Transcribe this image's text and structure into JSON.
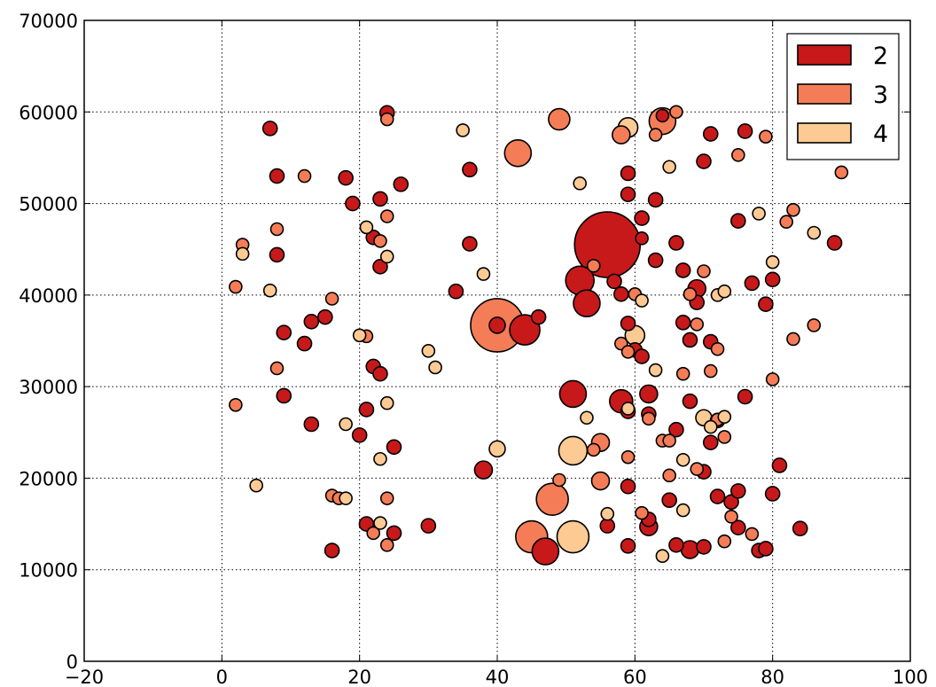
{
  "chart_data": {
    "type": "scatter",
    "title": "",
    "xlabel": "",
    "ylabel": "",
    "xlim": [
      -20,
      100
    ],
    "ylim": [
      0,
      70000
    ],
    "x_ticks": [
      -20,
      0,
      20,
      40,
      60,
      80,
      100
    ],
    "y_ticks": [
      0,
      10000,
      20000,
      30000,
      40000,
      50000,
      60000,
      70000
    ],
    "x_tick_labels": [
      "−20",
      "0",
      "20",
      "40",
      "60",
      "80",
      "100"
    ],
    "y_tick_labels": [
      "0",
      "10000",
      "20000",
      "30000",
      "40000",
      "50000",
      "60000",
      "70000"
    ],
    "grid": true,
    "legend_position": "top-right",
    "encoding": "marker size encodes a third quantity; color encodes series",
    "series": [
      {
        "name": "2",
        "color": "#c7191a",
        "points": [
          [
            56,
            45500,
            37
          ],
          [
            40,
            36700,
            9
          ],
          [
            44,
            36200,
            17
          ],
          [
            52,
            41600,
            16
          ],
          [
            53,
            39100,
            15
          ],
          [
            51,
            29200,
            15
          ],
          [
            58,
            28400,
            13
          ],
          [
            47,
            12000,
            15
          ],
          [
            62,
            29200,
            10
          ],
          [
            62,
            14700,
            10
          ],
          [
            69,
            40700,
            10
          ],
          [
            68,
            12200,
            10
          ],
          [
            38,
            20900,
            10
          ],
          [
            7,
            58200,
            8
          ],
          [
            8,
            53000,
            8
          ],
          [
            8,
            44400,
            8
          ],
          [
            9,
            35900,
            8
          ],
          [
            9,
            29000,
            8
          ],
          [
            13,
            37100,
            8
          ],
          [
            12,
            34700,
            8
          ],
          [
            13,
            25900,
            8
          ],
          [
            15,
            37600,
            8
          ],
          [
            16,
            12100,
            8
          ],
          [
            18,
            52800,
            8
          ],
          [
            19,
            50000,
            8
          ],
          [
            20,
            24700,
            8
          ],
          [
            21,
            27500,
            8
          ],
          [
            21,
            15000,
            8
          ],
          [
            22,
            32200,
            8
          ],
          [
            23,
            31400,
            8
          ],
          [
            22,
            46300,
            8
          ],
          [
            23,
            43100,
            8
          ],
          [
            23,
            50500,
            8
          ],
          [
            24,
            59900,
            8
          ],
          [
            25,
            23400,
            8
          ],
          [
            25,
            14000,
            8
          ],
          [
            26,
            52100,
            8
          ],
          [
            30,
            14800,
            8
          ],
          [
            34,
            40400,
            8
          ],
          [
            36,
            53700,
            8
          ],
          [
            36,
            45600,
            8
          ],
          [
            46,
            37600,
            8
          ],
          [
            56,
            14800,
            8
          ],
          [
            57,
            41500,
            8
          ],
          [
            58,
            40100,
            8
          ],
          [
            59,
            53300,
            8
          ],
          [
            59,
            51000,
            8
          ],
          [
            59,
            36900,
            8
          ],
          [
            59,
            27300,
            8
          ],
          [
            59,
            19100,
            8
          ],
          [
            59,
            12600,
            8
          ],
          [
            60,
            34000,
            8
          ],
          [
            61,
            48400,
            8
          ],
          [
            61,
            33300,
            8
          ],
          [
            62,
            27000,
            8
          ],
          [
            62,
            15500,
            8
          ],
          [
            63,
            50400,
            8
          ],
          [
            63,
            43800,
            8
          ],
          [
            65,
            17600,
            8
          ],
          [
            66,
            45700,
            8
          ],
          [
            66,
            25300,
            8
          ],
          [
            66,
            12700,
            8
          ],
          [
            67,
            42700,
            8
          ],
          [
            67,
            37000,
            8
          ],
          [
            68,
            35100,
            8
          ],
          [
            68,
            28400,
            8
          ],
          [
            69,
            39200,
            8
          ],
          [
            70,
            54600,
            8
          ],
          [
            70,
            20700,
            8
          ],
          [
            70,
            12500,
            8
          ],
          [
            71,
            57600,
            8
          ],
          [
            71,
            34900,
            8
          ],
          [
            71,
            23900,
            8
          ],
          [
            72,
            18000,
            8
          ],
          [
            72,
            26300,
            8
          ],
          [
            74,
            17400,
            8
          ],
          [
            75,
            48100,
            8
          ],
          [
            75,
            18600,
            8
          ],
          [
            75,
            14600,
            8
          ],
          [
            76,
            57900,
            8
          ],
          [
            76,
            28900,
            8
          ],
          [
            77,
            41300,
            8
          ],
          [
            78,
            12100,
            8
          ],
          [
            79,
            12300,
            8
          ],
          [
            79,
            39000,
            8
          ],
          [
            80,
            41700,
            8
          ],
          [
            80,
            18300,
            8
          ],
          [
            81,
            21400,
            8
          ],
          [
            84,
            14500,
            8
          ],
          [
            89,
            45700,
            8
          ],
          [
            61,
            46200,
            7
          ],
          [
            64,
            59600,
            7
          ]
        ]
      },
      {
        "name": "3",
        "color": "#f47d57",
        "points": [
          [
            40,
            36700,
            30
          ],
          [
            43,
            55500,
            15
          ],
          [
            49,
            59200,
            12
          ],
          [
            48,
            17700,
            18
          ],
          [
            45,
            13600,
            18
          ],
          [
            55,
            23900,
            10
          ],
          [
            55,
            19700,
            10
          ],
          [
            58,
            57500,
            10
          ],
          [
            64,
            59000,
            15
          ],
          [
            2,
            40900,
            7
          ],
          [
            2,
            28000,
            7
          ],
          [
            3,
            45500,
            7
          ],
          [
            8,
            47200,
            7
          ],
          [
            8,
            32000,
            7
          ],
          [
            12,
            53000,
            7
          ],
          [
            16,
            39600,
            7
          ],
          [
            16,
            18100,
            7
          ],
          [
            17,
            17800,
            7
          ],
          [
            21,
            35500,
            7
          ],
          [
            22,
            14000,
            7
          ],
          [
            23,
            45900,
            7
          ],
          [
            24,
            48600,
            7
          ],
          [
            24,
            17800,
            7
          ],
          [
            24,
            12700,
            7
          ],
          [
            24,
            59200,
            7
          ],
          [
            49,
            19800,
            7
          ],
          [
            54,
            23100,
            7
          ],
          [
            54,
            43200,
            7
          ],
          [
            58,
            34700,
            7
          ],
          [
            59,
            33800,
            7
          ],
          [
            59,
            22300,
            7
          ],
          [
            60,
            40100,
            7
          ],
          [
            61,
            16200,
            7
          ],
          [
            62,
            26500,
            7
          ],
          [
            63,
            57500,
            7
          ],
          [
            64,
            24100,
            7
          ],
          [
            65,
            24100,
            7
          ],
          [
            65,
            20300,
            7
          ],
          [
            66,
            60000,
            7
          ],
          [
            67,
            31400,
            7
          ],
          [
            68,
            40100,
            7
          ],
          [
            69,
            36800,
            7
          ],
          [
            69,
            21000,
            7
          ],
          [
            70,
            42600,
            7
          ],
          [
            71,
            31700,
            7
          ],
          [
            72,
            34100,
            7
          ],
          [
            72,
            26400,
            7
          ],
          [
            73,
            24500,
            7
          ],
          [
            73,
            13100,
            7
          ],
          [
            74,
            15800,
            7
          ],
          [
            75,
            55300,
            7
          ],
          [
            77,
            13900,
            7
          ],
          [
            79,
            57300,
            7
          ],
          [
            80,
            30800,
            7
          ],
          [
            82,
            48000,
            7
          ],
          [
            83,
            49300,
            7
          ],
          [
            83,
            35200,
            7
          ],
          [
            86,
            36700,
            7
          ],
          [
            90,
            53400,
            7
          ]
        ]
      },
      {
        "name": "4",
        "color": "#fdca93",
        "points": [
          [
            51,
            13600,
            18
          ],
          [
            51,
            23000,
            16
          ],
          [
            59,
            58300,
            11
          ],
          [
            60,
            35600,
            11
          ],
          [
            70,
            26600,
            9
          ],
          [
            40,
            23200,
            9
          ],
          [
            3,
            44500,
            7
          ],
          [
            5,
            19200,
            7
          ],
          [
            7,
            40500,
            7
          ],
          [
            18,
            25900,
            7
          ],
          [
            18,
            17800,
            7
          ],
          [
            20,
            35600,
            7
          ],
          [
            21,
            47400,
            7
          ],
          [
            23,
            22100,
            7
          ],
          [
            23,
            15100,
            7
          ],
          [
            24,
            44200,
            7
          ],
          [
            24,
            28200,
            7
          ],
          [
            30,
            33900,
            7
          ],
          [
            31,
            32100,
            7
          ],
          [
            35,
            58000,
            7
          ],
          [
            38,
            42300,
            7
          ],
          [
            52,
            52200,
            7
          ],
          [
            53,
            26600,
            7
          ],
          [
            56,
            16100,
            7
          ],
          [
            59,
            27600,
            7
          ],
          [
            61,
            39400,
            7
          ],
          [
            63,
            31800,
            7
          ],
          [
            64,
            11500,
            7
          ],
          [
            65,
            54000,
            7
          ],
          [
            67,
            22000,
            7
          ],
          [
            67,
            16500,
            7
          ],
          [
            71,
            25600,
            7
          ],
          [
            72,
            40000,
            7
          ],
          [
            73,
            40400,
            7
          ],
          [
            73,
            26700,
            7
          ],
          [
            78,
            48900,
            7
          ],
          [
            80,
            43600,
            7
          ],
          [
            86,
            46800,
            7
          ]
        ]
      }
    ]
  }
}
